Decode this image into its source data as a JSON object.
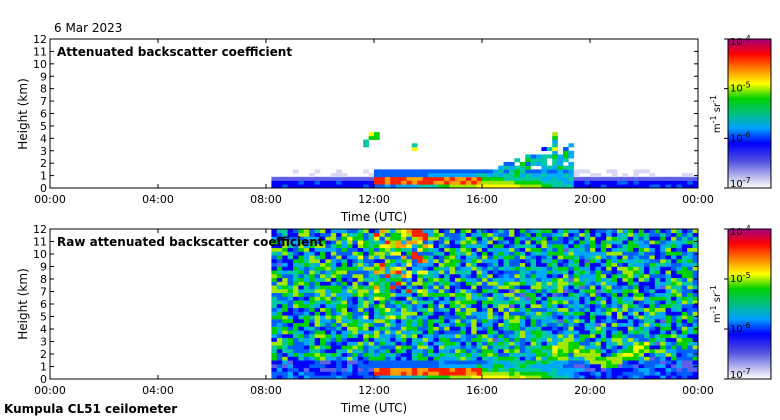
{
  "date": "6 Mar 2023",
  "footer": "Kumpula CL51 ceilometer",
  "chart_data": [
    {
      "type": "heatmap",
      "title": "Attenuated backscatter coefficient",
      "xlabel": "Time (UTC)",
      "ylabel": "Height (km)",
      "x_ticks": [
        "00:00",
        "04:00",
        "08:00",
        "12:00",
        "16:00",
        "20:00",
        "00:00"
      ],
      "y_ticks": [
        "0",
        "1",
        "2",
        "3",
        "4",
        "5",
        "6",
        "7",
        "8",
        "9",
        "10",
        "11",
        "12"
      ],
      "xlim_hours": [
        0,
        24
      ],
      "ylim_km": [
        0,
        12
      ],
      "data_start_hour": 8.25,
      "colorbar": {
        "scale": "log",
        "range": [
          1e-07,
          0.0001
        ],
        "ticks": [
          {
            "base": "10",
            "exp": "-4"
          },
          {
            "base": "10",
            "exp": "-5"
          },
          {
            "base": "10",
            "exp": "-6"
          },
          {
            "base": "10",
            "exp": "-7"
          }
        ],
        "label": {
          "main": "m",
          "exp1": "-1",
          "mid": " sr",
          "exp2": "-1"
        }
      }
    },
    {
      "type": "heatmap",
      "title": "Raw attenuated backscatter coefficient",
      "xlabel": "Time (UTC)",
      "ylabel": "Height (km)",
      "x_ticks": [
        "00:00",
        "04:00",
        "08:00",
        "12:00",
        "16:00",
        "20:00",
        "00:00"
      ],
      "y_ticks": [
        "0",
        "1",
        "2",
        "3",
        "4",
        "5",
        "6",
        "7",
        "8",
        "9",
        "10",
        "11",
        "12"
      ],
      "xlim_hours": [
        0,
        24
      ],
      "ylim_km": [
        0,
        12
      ],
      "data_start_hour": 8.25,
      "colorbar": {
        "scale": "log",
        "range": [
          1e-07,
          0.0001
        ],
        "ticks": [
          {
            "base": "10",
            "exp": "-4"
          },
          {
            "base": "10",
            "exp": "-5"
          },
          {
            "base": "10",
            "exp": "-6"
          },
          {
            "base": "10",
            "exp": "-7"
          }
        ],
        "label": {
          "main": "m",
          "exp1": "-1",
          "mid": " sr",
          "exp2": "-1"
        }
      }
    }
  ]
}
